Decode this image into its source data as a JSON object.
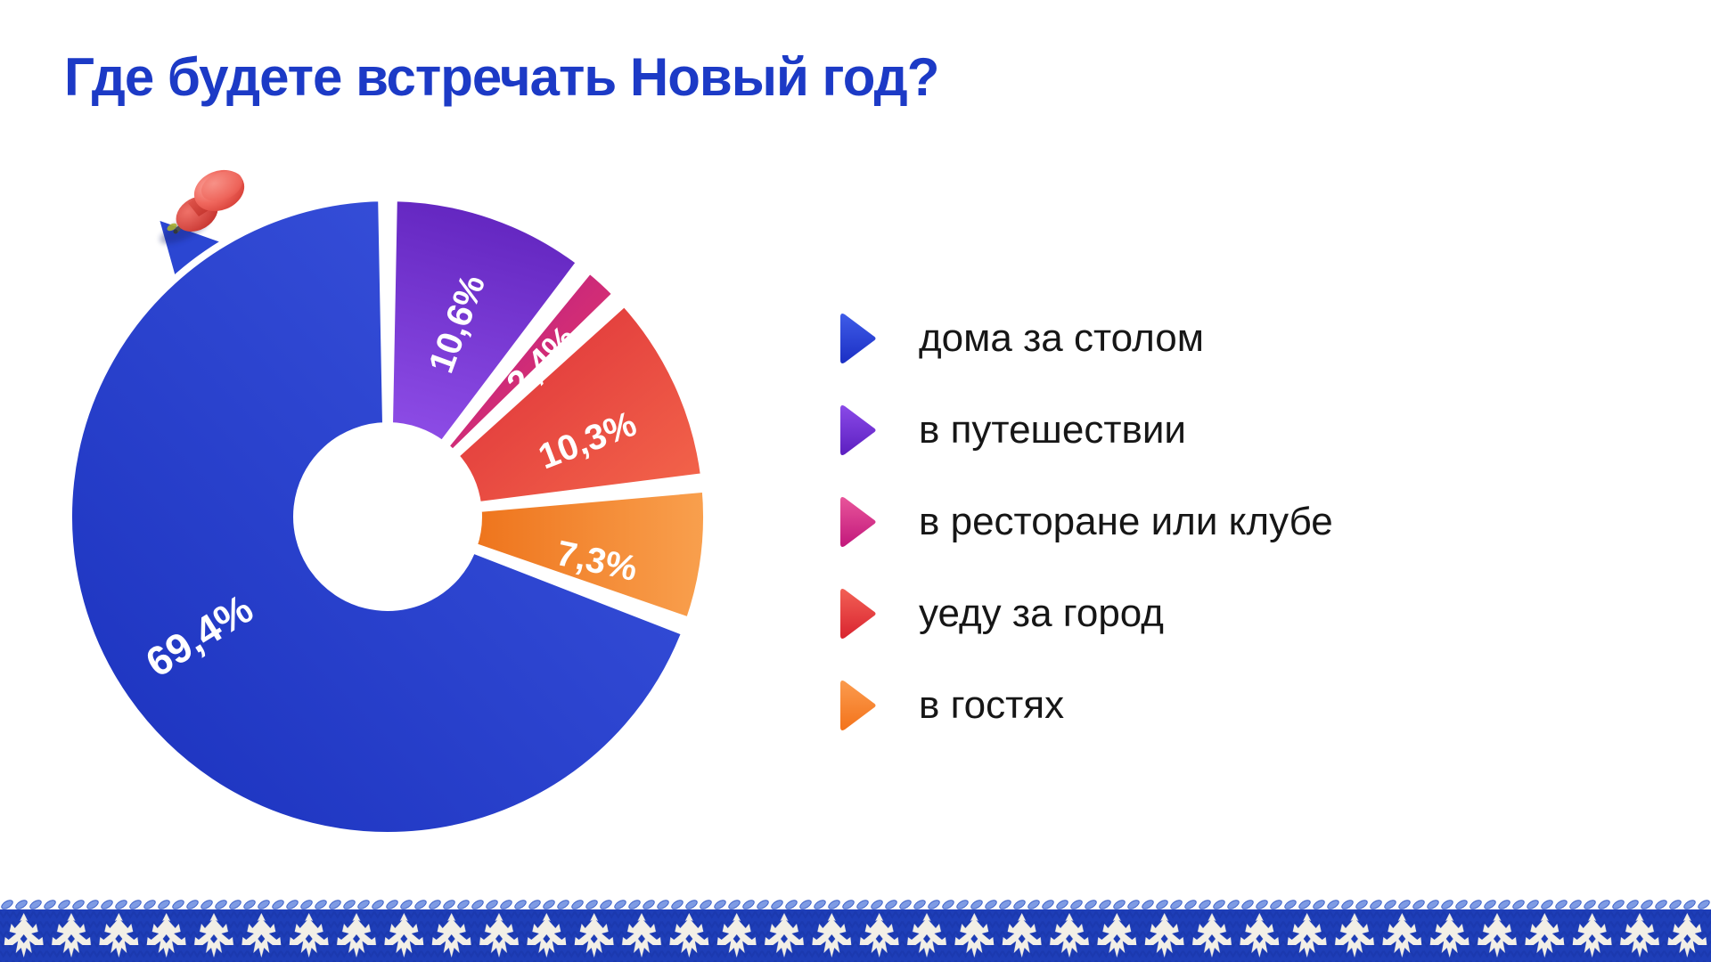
{
  "title": {
    "text": "Где будете встречать Новый год?",
    "color": "#1c3ac6"
  },
  "chart_data": {
    "type": "pie",
    "donut": true,
    "title": "Где будете встречать Новый год?",
    "unit": "%",
    "start_angle_deg": 0,
    "direction": "clockwise",
    "legend_position": "right",
    "slices": [
      {
        "label": "в путешествии",
        "value": 10.6,
        "display": "10,6%",
        "from": "#8d4ce6",
        "to": "#6124be"
      },
      {
        "label": "в ресторане или клубе",
        "value": 2.4,
        "display": "2,4%",
        "from": "#ef3a68",
        "to": "#b01d86"
      },
      {
        "label": "уеду за город",
        "value": 10.3,
        "display": "10,3%",
        "from": "#f4674b",
        "to": "#dc2e38"
      },
      {
        "label": "в гостях",
        "value": 7.3,
        "display": "7,3%",
        "from": "#f9a04e",
        "to": "#ee741c"
      },
      {
        "label": "дома за столом",
        "value": 69.4,
        "display": "69,4%",
        "from": "#3d56e0",
        "to": "#1a31bd"
      }
    ]
  },
  "legend": {
    "items": [
      {
        "label": "дома за столом",
        "from": "#3f5ce8",
        "to": "#1b2fc4"
      },
      {
        "label": "в путешествии",
        "from": "#8a4ae8",
        "to": "#5c1fc0"
      },
      {
        "label": "в ресторане или клубе",
        "from": "#e8559a",
        "to": "#c2187c"
      },
      {
        "label": "уеду за город",
        "from": "#f26055",
        "to": "#d92430"
      },
      {
        "label": "в гостях",
        "from": "#fb9b4e",
        "to": "#f3731b"
      }
    ]
  },
  "decor": {
    "pushpin": "red-pushpin",
    "flap_color": "#2b46d2",
    "band_color": "#1e3eb8",
    "band_rib_color": "#1834a8",
    "motif_color": "#f2efe6",
    "braid_color": "#7e9be4",
    "braid_edge_color": "#3f62c8"
  }
}
